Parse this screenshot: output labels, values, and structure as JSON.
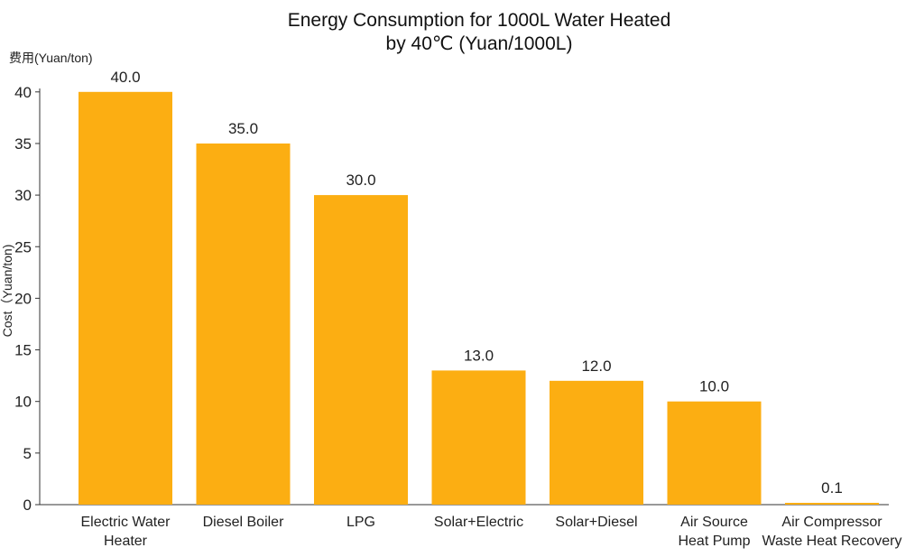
{
  "chart_data": {
    "type": "bar",
    "title_lines": [
      "Energy Consumption for 1000L Water Heated",
      "by 40℃ (Yuan/1000L)"
    ],
    "ylabel": "Cost（Yuan/ton)",
    "y_unit_label": "费用(Yuan/ton)",
    "ylim": [
      0,
      42
    ],
    "yticks": [
      0,
      5,
      10,
      15,
      20,
      25,
      30,
      35,
      40
    ],
    "categories": [
      [
        "Electric Water",
        "Heater"
      ],
      [
        "Diesel Boiler"
      ],
      [
        "LPG"
      ],
      [
        "Solar+Electric"
      ],
      [
        "Solar+Diesel"
      ],
      [
        "Air Source",
        "Heat Pump"
      ],
      [
        "Air Compressor",
        "Waste Heat Recovery"
      ]
    ],
    "values": [
      40.0,
      35.0,
      30.0,
      13.0,
      12.0,
      10.0,
      0.1
    ],
    "value_labels": [
      "40.0",
      "35.0",
      "30.0",
      "13.0",
      "12.0",
      "10.0",
      "0.1"
    ],
    "bar_color": "#FCAE12",
    "grid": false,
    "legend": "none"
  }
}
